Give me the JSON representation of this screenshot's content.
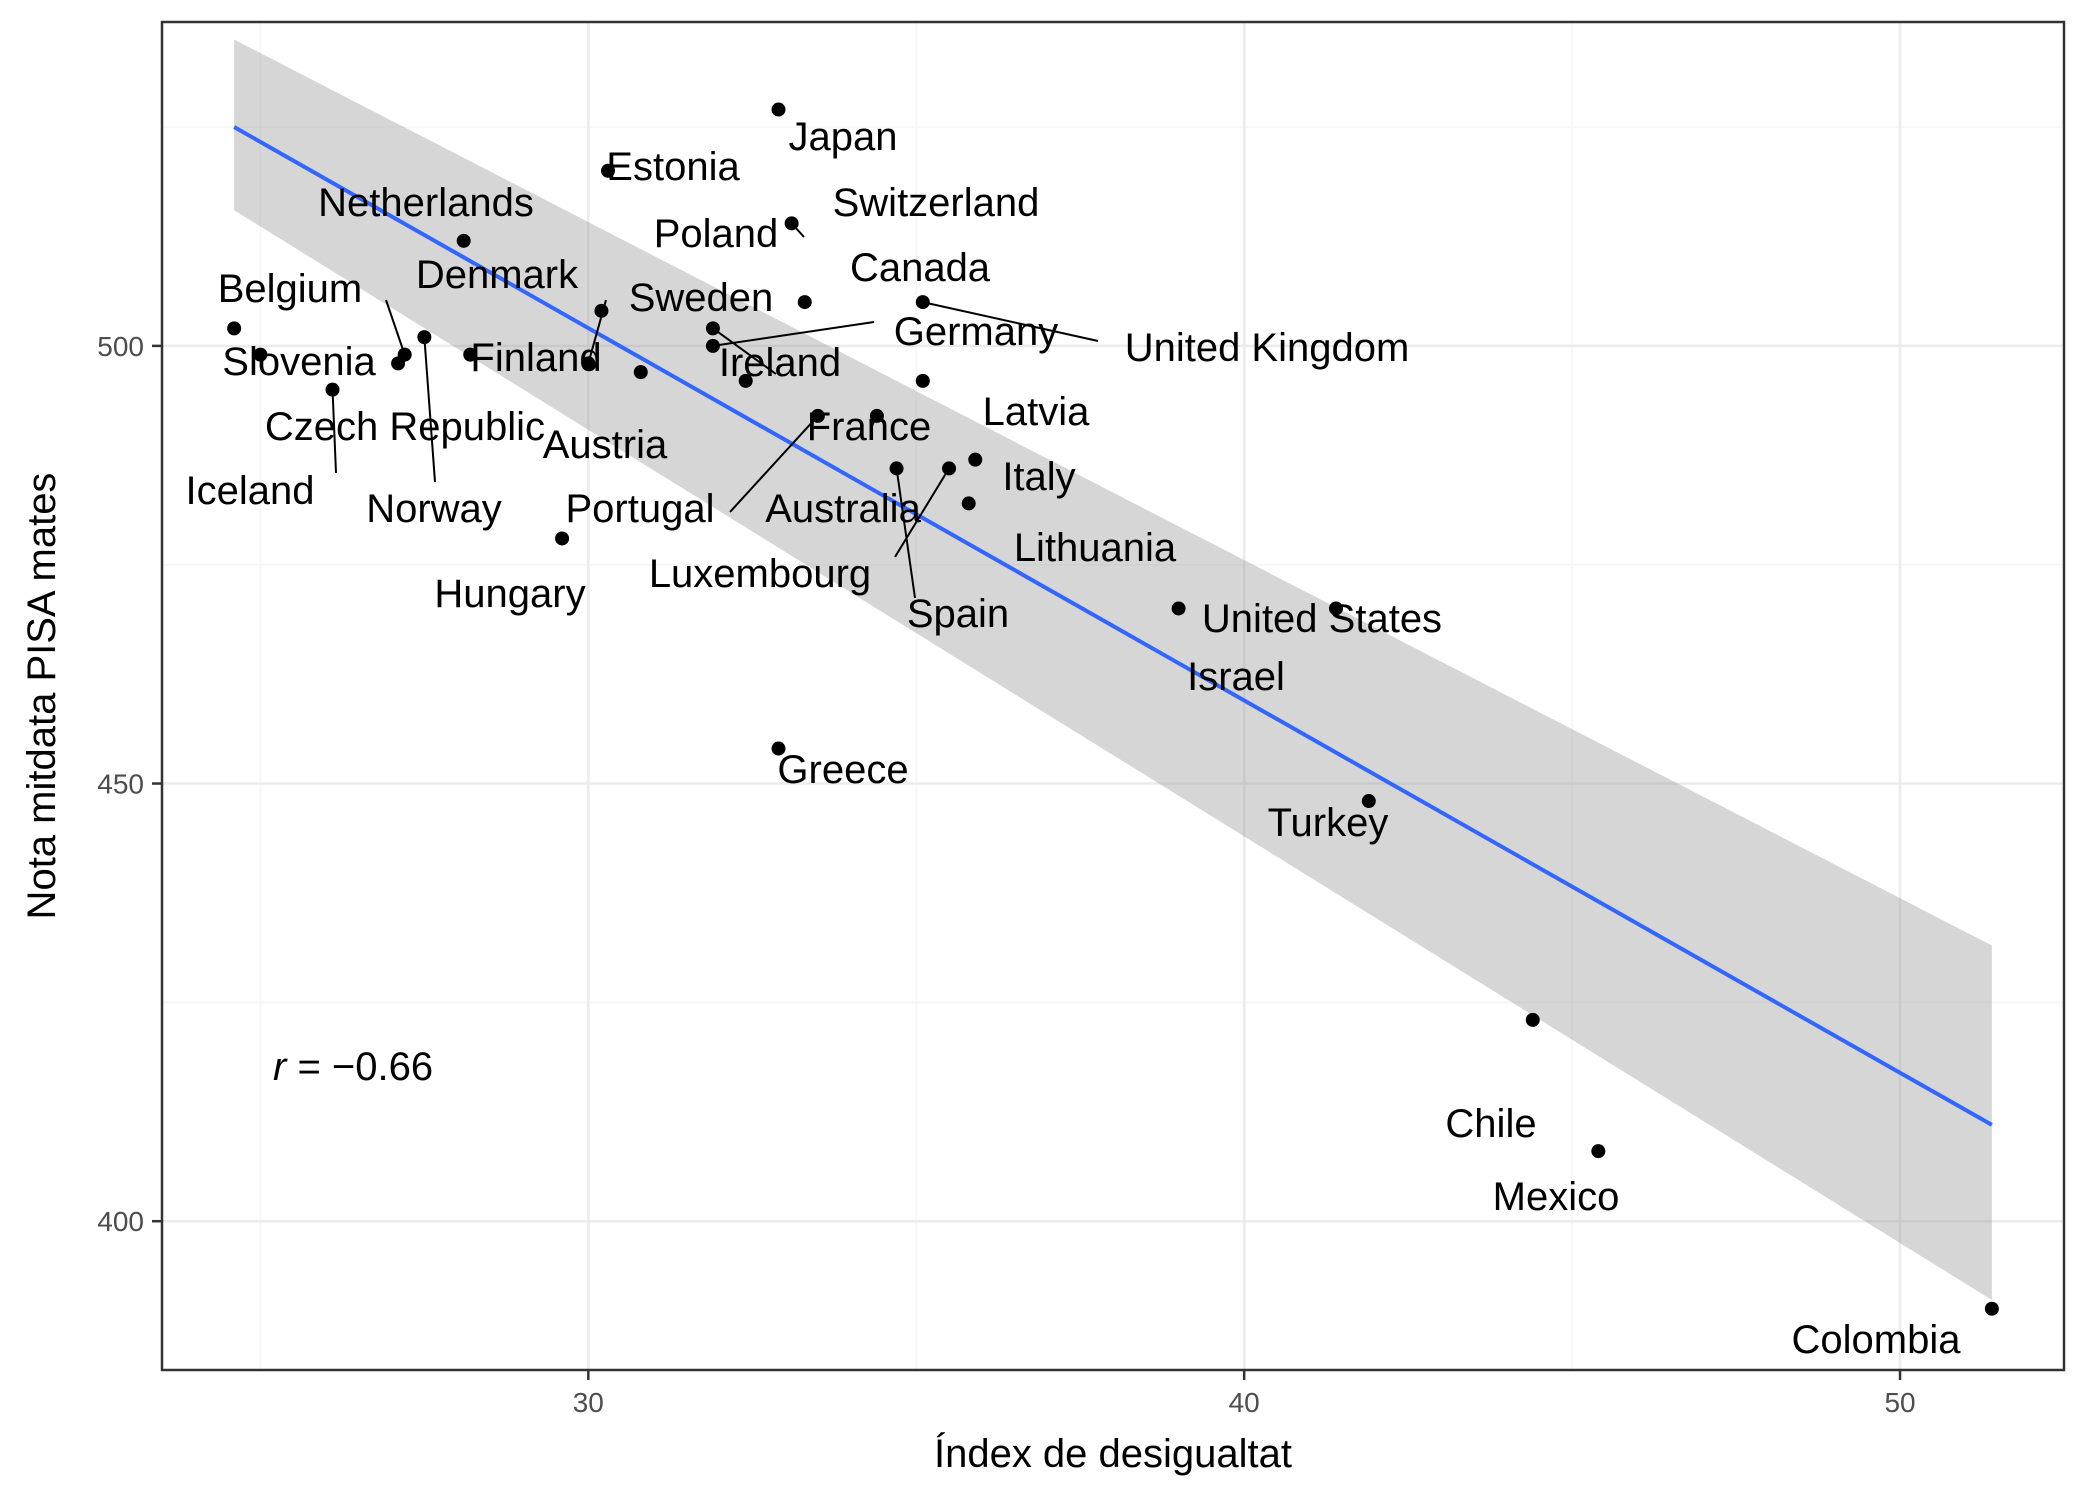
{
  "chart_data": {
    "type": "scatter",
    "title": "",
    "xlabel": "Índex de desigualtat",
    "ylabel": "Nota mitdata PISA mates",
    "xlim": [
      23.5,
      52.5
    ],
    "ylim": [
      383,
      537
    ],
    "x_ticks": [
      30,
      40,
      50
    ],
    "y_ticks": [
      400,
      450,
      500
    ],
    "x_tick_labels": [
      "30",
      "40",
      "50"
    ],
    "y_tick_labels": [
      "400",
      "450",
      "500"
    ],
    "grid": true,
    "legend": "none",
    "colors": {
      "point": "#000000",
      "fit_line": "#3366ff",
      "ribbon": "#999999",
      "grid_major": "#ebebeb",
      "grid_minor": "#f5f5f5",
      "panel_border": "#333333"
    },
    "annotation": {
      "r_symbol": "r",
      "r_value": " = −0.66"
    },
    "fit": {
      "method": "linear",
      "x": [
        24.6,
        51.4
      ],
      "y": [
        525.0,
        411.0
      ],
      "ci_lower": [
        515.5,
        391.0
      ],
      "ci_upper": [
        535.0,
        431.5
      ]
    },
    "points": [
      {
        "label": "Japan",
        "x": 32.9,
        "y": 527
      },
      {
        "label": "Estonia",
        "x": 30.3,
        "y": 520
      },
      {
        "label": "Switzerland",
        "x": 33.1,
        "y": 514
      },
      {
        "label": "Netherlands",
        "x": 28.1,
        "y": 512
      },
      {
        "label": "Poland",
        "x": 30.2,
        "y": 504
      },
      {
        "label": "Canada",
        "x": 33.3,
        "y": 505
      },
      {
        "label": "Denmark",
        "x": 28.2,
        "y": 499
      },
      {
        "label": "Sweden",
        "x": 30.0,
        "y": 498
      },
      {
        "label": "Belgium",
        "x": 27.2,
        "y": 499
      },
      {
        "label": "Slovenia",
        "x": 24.6,
        "y": 502
      },
      {
        "label": "Finland",
        "x": 27.1,
        "y": 498
      },
      {
        "label": "Ireland",
        "x": 31.9,
        "y": 502
      },
      {
        "label": "Germany",
        "x": 31.9,
        "y": 500
      },
      {
        "label": "United Kingdom",
        "x": 35.1,
        "y": 505
      },
      {
        "label": "Czech Republic",
        "x": 25.0,
        "y": 499
      },
      {
        "label": "Norway",
        "x": 27.5,
        "y": 501
      },
      {
        "label": "Iceland",
        "x": 26.1,
        "y": 495
      },
      {
        "label": "Austria",
        "x": 30.8,
        "y": 497
      },
      {
        "label": "Latvia",
        "x": 35.1,
        "y": 496
      },
      {
        "label": "France",
        "x": 32.4,
        "y": 496
      },
      {
        "label": "Portugal",
        "x": 33.5,
        "y": 492
      },
      {
        "label": "Australia",
        "x": 34.4,
        "y": 492
      },
      {
        "label": "Italy",
        "x": 35.9,
        "y": 487
      },
      {
        "label": "Hungary",
        "x": 29.6,
        "y": 478
      },
      {
        "label": "Luxembourg",
        "x": 35.5,
        "y": 486
      },
      {
        "label": "Spain",
        "x": 34.7,
        "y": 486
      },
      {
        "label": "Lithuania",
        "x": 35.8,
        "y": 482
      },
      {
        "label": "United States",
        "x": 41.4,
        "y": 470
      },
      {
        "label": "Israel",
        "x": 39.0,
        "y": 470
      },
      {
        "label": "Greece",
        "x": 32.9,
        "y": 454
      },
      {
        "label": "Turkey",
        "x": 41.9,
        "y": 448
      },
      {
        "label": "Chile",
        "x": 44.4,
        "y": 423
      },
      {
        "label": "Mexico",
        "x": 45.4,
        "y": 408
      },
      {
        "label": "Colombia",
        "x": 51.4,
        "y": 390
      }
    ]
  }
}
